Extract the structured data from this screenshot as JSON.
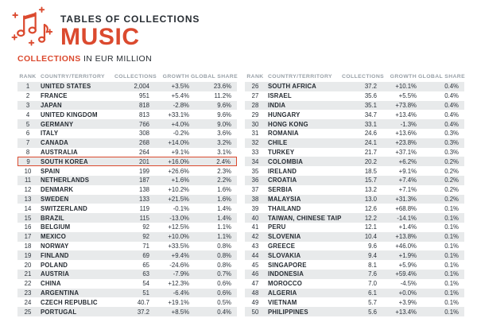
{
  "header": {
    "eyebrow": "TABLES OF COLLECTIONS",
    "title": "MUSIC"
  },
  "subtitle": {
    "highlight": "COLLECTIONS",
    "rest": " IN EUR MILLION"
  },
  "colors": {
    "accent": "#DB4A2F",
    "dark": "#272D33",
    "muted": "#99A1A8",
    "stripe": "#E8EAEB"
  },
  "columns": [
    "RANK",
    "COUNTRY/TERRITORY",
    "COLLECTIONS",
    "GROWTH",
    "GLOBAL SHARE"
  ],
  "highlighted_rank": 9,
  "tables": [
    {
      "rows": [
        [
          1,
          "UNITED STATES",
          "2,004",
          "+3.5%",
          "23.6%"
        ],
        [
          2,
          "FRANCE",
          "951",
          "+5.4%",
          "11.2%"
        ],
        [
          3,
          "JAPAN",
          "818",
          "-2.8%",
          "9.6%"
        ],
        [
          4,
          "UNITED KINGDOM",
          "813",
          "+33.1%",
          "9.6%"
        ],
        [
          5,
          "GERMANY",
          "766",
          "+4.0%",
          "9.0%"
        ],
        [
          6,
          "ITALY",
          "308",
          "-0.2%",
          "3.6%"
        ],
        [
          7,
          "CANADA",
          "268",
          "+14.0%",
          "3.2%"
        ],
        [
          8,
          "AUSTRALIA",
          "264",
          "+9.1%",
          "3.1%"
        ],
        [
          9,
          "SOUTH KOREA",
          "201",
          "+16.0%",
          "2.4%"
        ],
        [
          10,
          "SPAIN",
          "199",
          "+26.6%",
          "2.3%"
        ],
        [
          11,
          "NETHERLANDS",
          "187",
          "+1.6%",
          "2.2%"
        ],
        [
          12,
          "DENMARK",
          "138",
          "+10.2%",
          "1.6%"
        ],
        [
          13,
          "SWEDEN",
          "133",
          "+21.5%",
          "1.6%"
        ],
        [
          14,
          "SWITZERLAND",
          "119",
          "-0.1%",
          "1.4%"
        ],
        [
          15,
          "BRAZIL",
          "115",
          "-13.0%",
          "1.4%"
        ],
        [
          16,
          "BELGIUM",
          "92",
          "+12.5%",
          "1.1%"
        ],
        [
          17,
          "MEXICO",
          "92",
          "+10.0%",
          "1.1%"
        ],
        [
          18,
          "NORWAY",
          "71",
          "+33.5%",
          "0.8%"
        ],
        [
          19,
          "FINLAND",
          "69",
          "+9.4%",
          "0.8%"
        ],
        [
          20,
          "POLAND",
          "65",
          "-24.6%",
          "0.8%"
        ],
        [
          21,
          "AUSTRIA",
          "63",
          "-7.9%",
          "0.7%"
        ],
        [
          22,
          "CHINA",
          "54",
          "+12.3%",
          "0.6%"
        ],
        [
          23,
          "ARGENTINA",
          "51",
          "-6.4%",
          "0.6%"
        ],
        [
          24,
          "CZECH REPUBLIC",
          "40.7",
          "+19.1%",
          "0.5%"
        ],
        [
          25,
          "PORTUGAL",
          "37.2",
          "+8.5%",
          "0.4%"
        ]
      ]
    },
    {
      "rows": [
        [
          26,
          "SOUTH AFRICA",
          "37.2",
          "+10.1%",
          "0.4%"
        ],
        [
          27,
          "ISRAEL",
          "35.6",
          "+5.5%",
          "0.4%"
        ],
        [
          28,
          "INDIA",
          "35.1",
          "+73.8%",
          "0.4%"
        ],
        [
          29,
          "HUNGARY",
          "34.7",
          "+13.4%",
          "0.4%"
        ],
        [
          30,
          "HONG KONG",
          "33.1",
          "-1.3%",
          "0.4%"
        ],
        [
          31,
          "ROMANIA",
          "24.6",
          "+13.6%",
          "0.3%"
        ],
        [
          32,
          "CHILE",
          "24.1",
          "+23.8%",
          "0.3%"
        ],
        [
          33,
          "TURKEY",
          "21.7",
          "+37.1%",
          "0.3%"
        ],
        [
          34,
          "COLOMBIA",
          "20.2",
          "+6.2%",
          "0.2%"
        ],
        [
          35,
          "IRELAND",
          "18.5",
          "+9.1%",
          "0.2%"
        ],
        [
          36,
          "CROATIA",
          "15.7",
          "+7.4%",
          "0.2%"
        ],
        [
          37,
          "SERBIA",
          "13.2",
          "+7.1%",
          "0.2%"
        ],
        [
          38,
          "MALAYSIA",
          "13.0",
          "+31.3%",
          "0.2%"
        ],
        [
          39,
          "THAILAND",
          "12.6",
          "+68.8%",
          "0.1%"
        ],
        [
          40,
          "TAIWAN, CHINESE TAIPEI",
          "12.2",
          "-14.1%",
          "0.1%"
        ],
        [
          41,
          "PERU",
          "12.1",
          "+1.4%",
          "0.1%"
        ],
        [
          42,
          "SLOVENIA",
          "10.4",
          "+13.8%",
          "0.1%"
        ],
        [
          43,
          "GREECE",
          "9.6",
          "+46.0%",
          "0.1%"
        ],
        [
          44,
          "SLOVAKIA",
          "9.4",
          "+1.9%",
          "0.1%"
        ],
        [
          45,
          "SINGAPORE",
          "8.1",
          "+5.9%",
          "0.1%"
        ],
        [
          46,
          "INDONESIA",
          "7.6",
          "+59.4%",
          "0.1%"
        ],
        [
          47,
          "MOROCCO",
          "7.0",
          "-4.5%",
          "0.1%"
        ],
        [
          48,
          "ALGERIA",
          "6.1",
          "+0.0%",
          "0.1%"
        ],
        [
          49,
          "VIETNAM",
          "5.7",
          "+3.9%",
          "0.1%"
        ],
        [
          50,
          "PHILIPPINES",
          "5.6",
          "+13.4%",
          "0.1%"
        ]
      ]
    }
  ]
}
